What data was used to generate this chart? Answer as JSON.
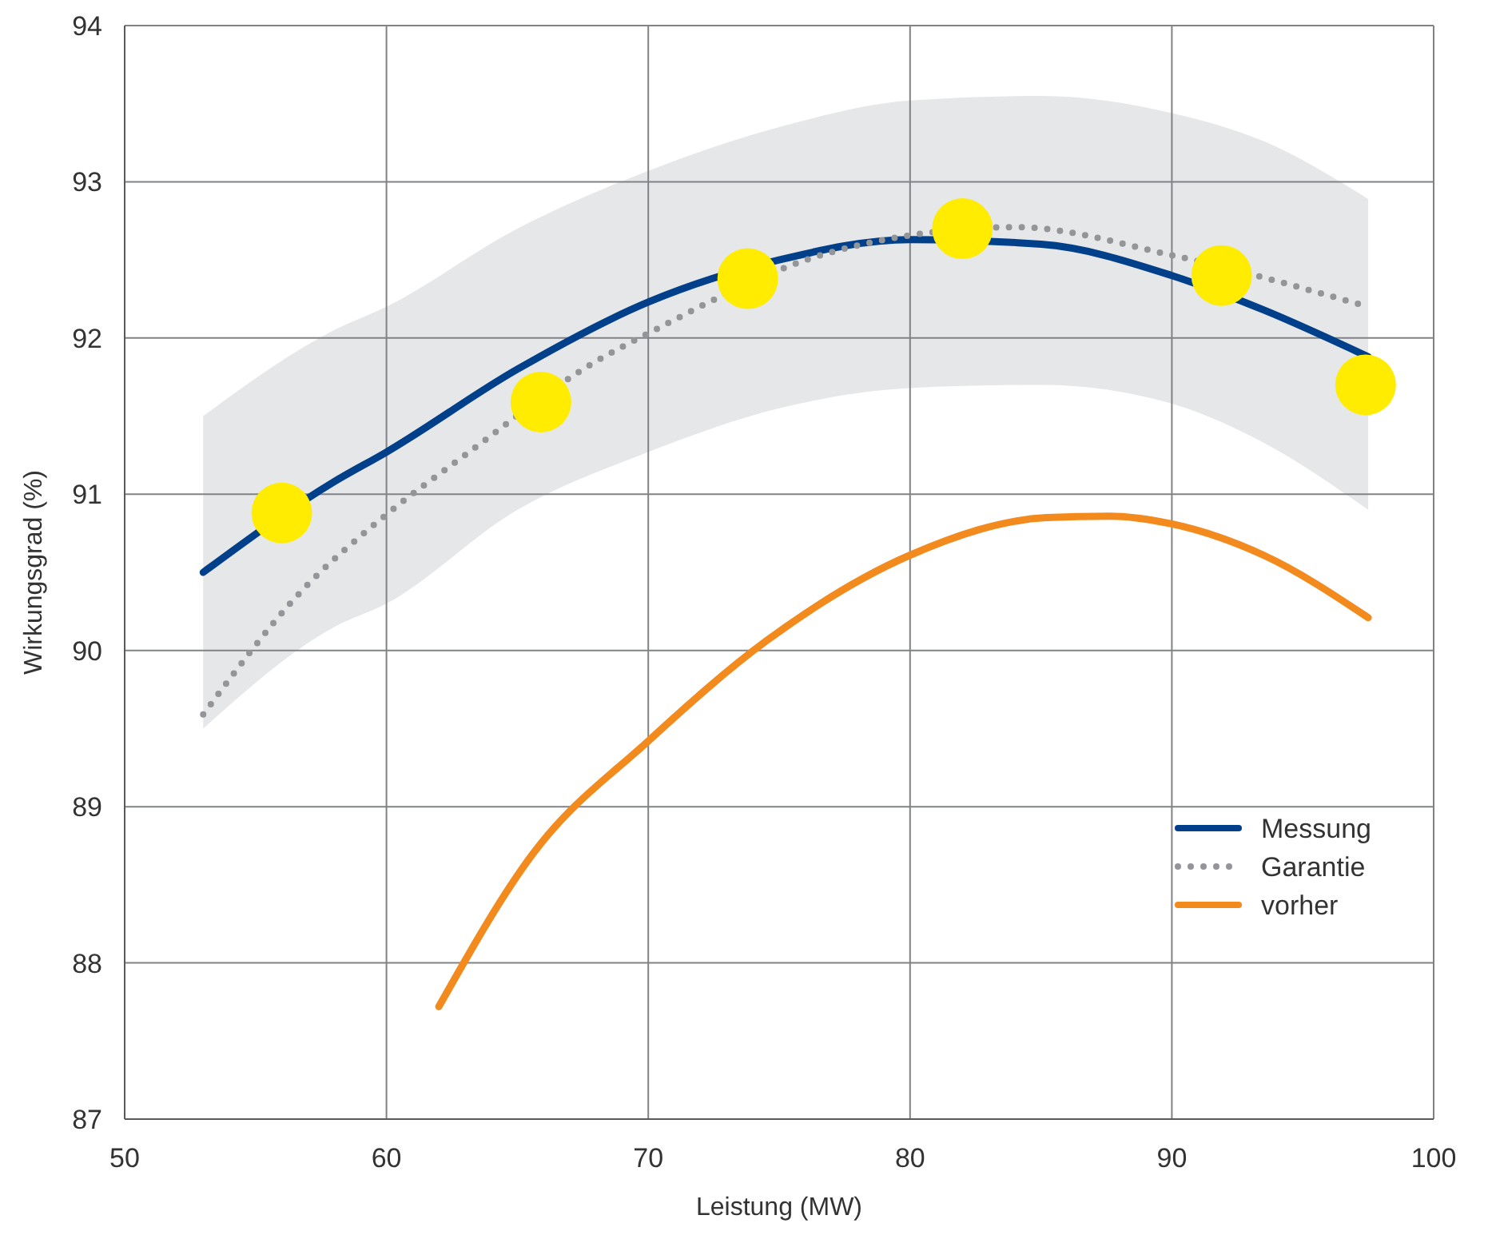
{
  "chart_data": {
    "type": "line",
    "xlabel": "Leistung (MW)",
    "ylabel": "Wirkungsgrad (%)",
    "xlim": [
      50,
      100
    ],
    "ylim": [
      87,
      94
    ],
    "xticks": [
      50,
      60,
      70,
      80,
      90,
      100
    ],
    "yticks": [
      87,
      88,
      89,
      90,
      91,
      92,
      93,
      94
    ],
    "grid": true,
    "legend": "bottom right",
    "series": [
      {
        "name": "Messung",
        "color": "#003f8a",
        "line_style": "solid",
        "x": [
          53,
          58,
          60,
          65,
          70,
          75,
          80,
          85,
          90,
          93.5,
          97.5
        ],
        "values": [
          90.5,
          91.08,
          91.27,
          91.8,
          92.23,
          92.5,
          92.63,
          92.6,
          92.4,
          92.18,
          91.88
        ],
        "lower": [
          89.5,
          90.15,
          90.3,
          90.9,
          91.27,
          91.55,
          91.68,
          91.7,
          91.58,
          91.33,
          90.9
        ],
        "upper": [
          91.5,
          92.05,
          92.2,
          92.7,
          93.07,
          93.35,
          93.52,
          93.55,
          93.44,
          93.26,
          92.89
        ]
      },
      {
        "name": "Garantie",
        "color": "#939598",
        "line_style": "dotted",
        "x": [
          53,
          56.7,
          60,
          63,
          68,
          70,
          77,
          84,
          90,
          97.5
        ],
        "values": [
          89.59,
          90.37,
          90.87,
          91.25,
          91.85,
          92.03,
          92.55,
          92.71,
          92.53,
          92.2
        ]
      },
      {
        "name": "vorher",
        "color": "#f28a1d",
        "line_style": "solid",
        "x": [
          62,
          65.6,
          70,
          74.5,
          80,
          85.2,
          87.6,
          90,
          93.5,
          97.5
        ],
        "values": [
          87.72,
          88.7,
          89.42,
          90.06,
          90.61,
          90.85,
          90.86,
          90.81,
          90.61,
          90.21
        ]
      },
      {
        "type": "scatter",
        "color": "#ffec00",
        "marker": "circle",
        "x": [
          56,
          65.9,
          73.8,
          82,
          91.9,
          97.4
        ],
        "values": [
          90.88,
          91.59,
          92.38,
          92.7,
          92.4,
          91.7
        ]
      }
    ]
  }
}
